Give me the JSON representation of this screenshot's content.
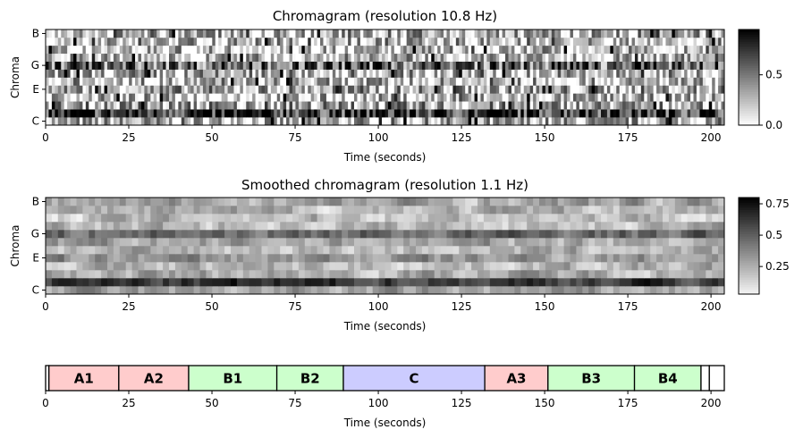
{
  "chart_data": [
    {
      "type": "heatmap",
      "title": "Chromagram (resolution 10.8 Hz)",
      "xlabel": "Time (seconds)",
      "ylabel": "Chroma",
      "xlim": [
        0,
        204
      ],
      "x_ticks": [
        0,
        25,
        50,
        75,
        100,
        125,
        150,
        175,
        200
      ],
      "y_ticks": [
        "C",
        "E",
        "G",
        "B"
      ],
      "colormap": "gray_r",
      "colorbar": {
        "range": [
          0.0,
          0.95
        ],
        "ticks": [
          0.0,
          0.5
        ]
      },
      "chroma_profile": [
        0.25,
        0.75,
        0.3,
        0.2,
        0.3,
        0.2,
        0.25,
        0.55,
        0.2,
        0.2,
        0.2,
        0.25
      ]
    },
    {
      "type": "heatmap",
      "title": "Smoothed chromagram (resolution 1.1 Hz)",
      "xlabel": "Time (seconds)",
      "ylabel": "Chroma",
      "xlim": [
        0,
        204
      ],
      "x_ticks": [
        0,
        25,
        50,
        75,
        100,
        125,
        150,
        175,
        200
      ],
      "y_ticks": [
        "C",
        "E",
        "G",
        "B"
      ],
      "colormap": "gray_r",
      "colorbar": {
        "range": [
          0.03,
          0.8
        ],
        "ticks": [
          0.25,
          0.5,
          0.75
        ]
      },
      "chroma_profile": [
        0.25,
        0.6,
        0.25,
        0.2,
        0.3,
        0.2,
        0.25,
        0.45,
        0.2,
        0.2,
        0.2,
        0.25
      ]
    },
    {
      "type": "segments",
      "xlabel": "Time (seconds)",
      "xlim": [
        0,
        204
      ],
      "x_ticks": [
        0,
        25,
        50,
        75,
        100,
        125,
        150,
        175,
        200
      ],
      "segments": [
        {
          "label": "",
          "start": 0,
          "end": 1,
          "color": "#ffffff"
        },
        {
          "label": "A1",
          "start": 1,
          "end": 22,
          "color": "#ffcccc"
        },
        {
          "label": "A2",
          "start": 22,
          "end": 43,
          "color": "#ffcccc"
        },
        {
          "label": "B1",
          "start": 43,
          "end": 69.5,
          "color": "#ccffcc"
        },
        {
          "label": "B2",
          "start": 69.5,
          "end": 89.5,
          "color": "#ccffcc"
        },
        {
          "label": "C",
          "start": 89.5,
          "end": 132,
          "color": "#ccccff"
        },
        {
          "label": "A3",
          "start": 132,
          "end": 151,
          "color": "#ffcccc"
        },
        {
          "label": "B3",
          "start": 151,
          "end": 177,
          "color": "#ccffcc"
        },
        {
          "label": "B4",
          "start": 177,
          "end": 197,
          "color": "#ccffcc"
        },
        {
          "label": "",
          "start": 197,
          "end": 199.5,
          "color": "#ffffff"
        },
        {
          "label": "",
          "start": 199.5,
          "end": 204,
          "color": "#ffffff"
        }
      ]
    }
  ]
}
